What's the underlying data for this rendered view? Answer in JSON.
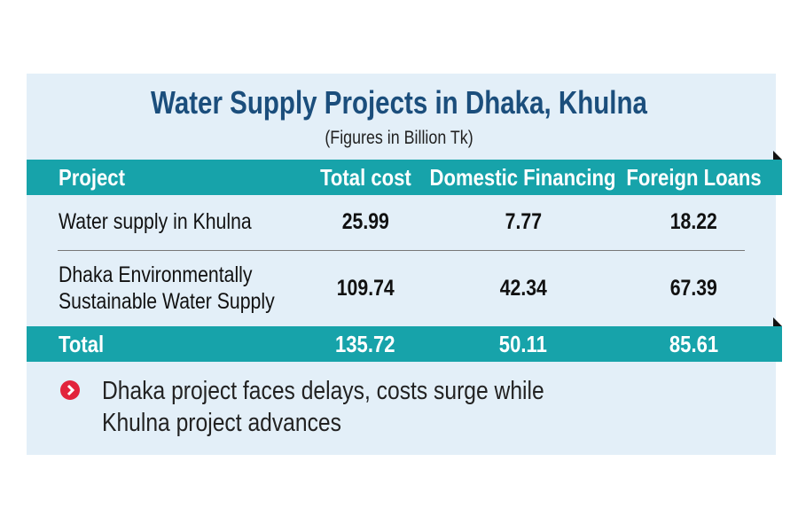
{
  "header": {
    "title": "Water Supply Projects in Dhaka, Khulna",
    "subtitle": "(Figures in Billion Tk)"
  },
  "table": {
    "columns": [
      "Project",
      "Total cost",
      "Domestic Financing",
      "Foreign Loans"
    ],
    "rows": [
      [
        "Water supply in Khulna",
        "25.99",
        "7.77",
        "18.22"
      ],
      [
        "Dhaka Environmentally Sustainable Water Supply",
        "109.74",
        "42.34",
        "67.39"
      ]
    ],
    "total": [
      "Total",
      "135.72",
      "50.11",
      "85.61"
    ]
  },
  "note": "Dhaka project faces delays, costs surge while Khulna project advances"
}
